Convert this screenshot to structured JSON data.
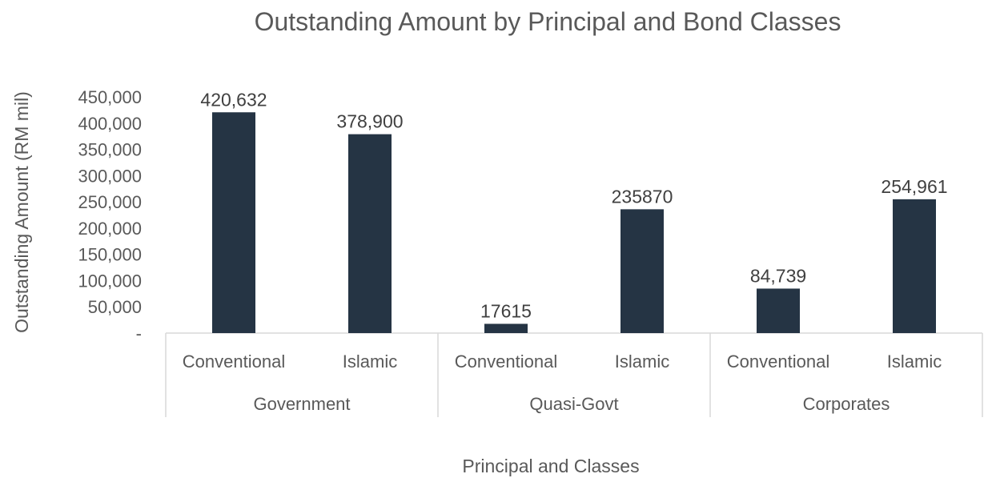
{
  "chart_data": {
    "type": "bar",
    "title": "Outstanding Amount by Principal and Bond Classes",
    "xlabel": "Principal and Classes",
    "ylabel": "Outstanding Amount (RM mil)",
    "ylim": [
      0,
      450000
    ],
    "yticks": [
      {
        "value": 0,
        "label": "-"
      },
      {
        "value": 50000,
        "label": "50,000"
      },
      {
        "value": 100000,
        "label": "100,000"
      },
      {
        "value": 150000,
        "label": "150,000"
      },
      {
        "value": 200000,
        "label": "200,000"
      },
      {
        "value": 250000,
        "label": "250,000"
      },
      {
        "value": 300000,
        "label": "300,000"
      },
      {
        "value": 350000,
        "label": "350,000"
      },
      {
        "value": 400000,
        "label": "400,000"
      },
      {
        "value": 450000,
        "label": "450,000"
      }
    ],
    "groups": [
      {
        "name": "Government",
        "categories": [
          "Conventional",
          "Islamic"
        ]
      },
      {
        "name": "Quasi-Govt",
        "categories": [
          "Conventional",
          "Islamic"
        ]
      },
      {
        "name": "Corporates",
        "categories": [
          "Conventional",
          "Islamic"
        ]
      }
    ],
    "values": [
      420632,
      378900,
      17615,
      235870,
      84739,
      254961
    ],
    "data_labels": [
      "420,632",
      "378,900",
      "17615",
      "235870",
      "84,739",
      "254,961"
    ],
    "bar_color": "#253444",
    "grid": false,
    "legend": "none"
  }
}
